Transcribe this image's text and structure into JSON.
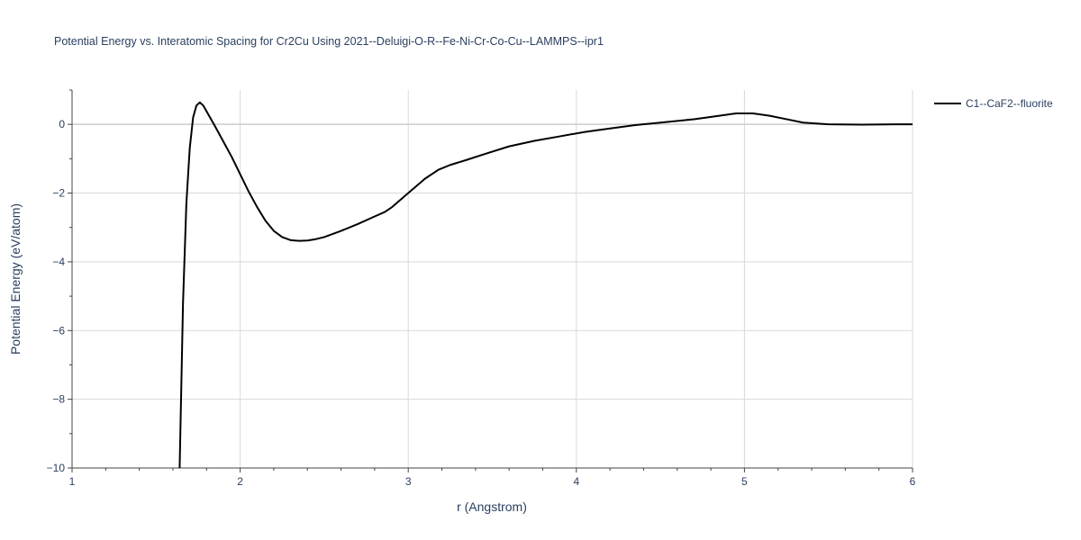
{
  "chart_data": {
    "type": "line",
    "title": "Potential Energy vs. Interatomic Spacing for Cr2Cu Using 2021--Deluigi-O-R--Fe-Ni-Cr-Co-Cu--LAMMPS--ipr1",
    "xlabel": "r (Angstrom)",
    "ylabel": "Potential Energy (eV/atom)",
    "xlim": [
      1,
      6
    ],
    "ylim": [
      -10,
      1
    ],
    "xticks": [
      1,
      2,
      3,
      4,
      5,
      6
    ],
    "yticks": [
      0,
      -2,
      -4,
      -6,
      -8,
      -10
    ],
    "xtick_labels": [
      "1",
      "2",
      "3",
      "4",
      "5",
      "6"
    ],
    "ytick_labels": [
      "0",
      "−2",
      "−4",
      "−6",
      "−8",
      "−10"
    ],
    "grid": true,
    "legend_position": "top-right, outside plot",
    "series": [
      {
        "name": "C1--CaF2--fluorite",
        "color": "#000000",
        "x": [
          1.64,
          1.66,
          1.68,
          1.7,
          1.72,
          1.74,
          1.76,
          1.78,
          1.8,
          1.85,
          1.9,
          1.95,
          2.0,
          2.05,
          2.1,
          2.15,
          2.2,
          2.25,
          2.3,
          2.35,
          2.4,
          2.45,
          2.5,
          2.6,
          2.7,
          2.8,
          2.86,
          2.9,
          3.0,
          3.1,
          3.18,
          3.25,
          3.35,
          3.45,
          3.6,
          3.75,
          3.9,
          4.05,
          4.2,
          4.35,
          4.5,
          4.7,
          4.85,
          4.95,
          5.05,
          5.15,
          5.25,
          5.35,
          5.5,
          5.7,
          5.9,
          6.0
        ],
        "y": [
          -10.0,
          -5.2,
          -2.3,
          -0.7,
          0.2,
          0.55,
          0.64,
          0.55,
          0.38,
          -0.05,
          -0.5,
          -0.95,
          -1.45,
          -1.95,
          -2.4,
          -2.8,
          -3.1,
          -3.28,
          -3.37,
          -3.39,
          -3.38,
          -3.34,
          -3.28,
          -3.1,
          -2.9,
          -2.68,
          -2.55,
          -2.42,
          -2.0,
          -1.58,
          -1.32,
          -1.18,
          -1.03,
          -0.87,
          -0.64,
          -0.48,
          -0.35,
          -0.22,
          -0.12,
          -0.02,
          0.05,
          0.15,
          0.25,
          0.32,
          0.32,
          0.25,
          0.15,
          0.05,
          0.0,
          -0.01,
          0.0,
          0.0
        ]
      }
    ]
  }
}
